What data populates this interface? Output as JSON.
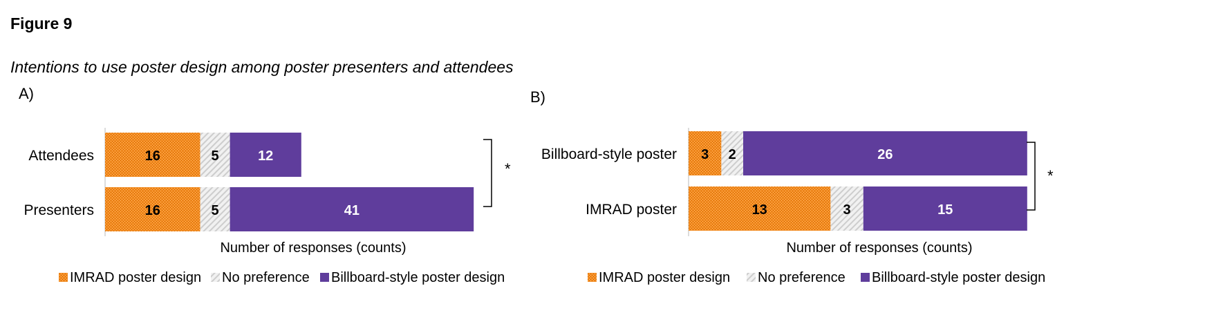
{
  "figure": {
    "title": "Figure 9",
    "subtitle": "Intentions to use poster design among poster presenters and attendees"
  },
  "colors": {
    "imrad": "#f28a1e",
    "no_pref": "#d9d9d9",
    "billboard": "#5f3d9c"
  },
  "chart_data": [
    {
      "type": "bar",
      "orientation": "horizontal",
      "stacked": true,
      "panel_label": "A)",
      "categories": [
        "Attendees",
        "Presenters"
      ],
      "series": [
        {
          "name": "IMRAD poster design",
          "values": [
            16,
            16
          ]
        },
        {
          "name": "No preference",
          "values": [
            5,
            5
          ]
        },
        {
          "name": "Billboard-style poster design",
          "values": [
            12,
            41
          ]
        }
      ],
      "xlabel": "Number of responses (counts)",
      "xlim": [
        0,
        62
      ],
      "significance": "*",
      "legend": "bottom",
      "grid": false
    },
    {
      "type": "bar",
      "orientation": "horizontal",
      "stacked": true,
      "panel_label": "B)",
      "categories": [
        "Billboard-style poster",
        "IMRAD poster"
      ],
      "series": [
        {
          "name": "IMRAD poster design",
          "values": [
            3,
            13
          ]
        },
        {
          "name": "No preference",
          "values": [
            2,
            3
          ]
        },
        {
          "name": "Billboard-style poster design",
          "values": [
            26,
            15
          ]
        }
      ],
      "xlabel": "Number of responses (counts)",
      "xlim": [
        0,
        31
      ],
      "significance": "*",
      "legend": "bottom",
      "grid": false
    }
  ]
}
